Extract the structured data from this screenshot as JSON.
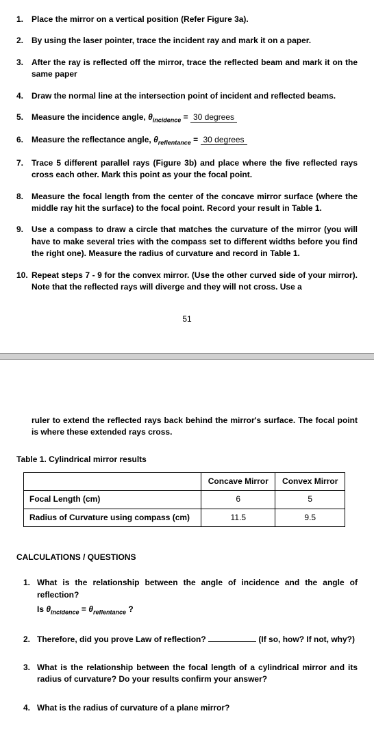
{
  "procedure": {
    "steps": [
      {
        "num": "1.",
        "text": "Place the mirror on a vertical position (Refer Figure 3a)."
      },
      {
        "num": "2.",
        "text": "By using the laser pointer, trace the incident ray and mark it on a paper."
      },
      {
        "num": "3.",
        "text": "After the ray is reflected off the mirror, trace the reflected beam and mark it on the same paper"
      },
      {
        "num": "4.",
        "text": "Draw the normal line at the intersection point of incident and reflected beams."
      },
      {
        "num": "5.",
        "prefix": "Measure the incidence angle, ",
        "theta": "θ",
        "sub": "incidence",
        "equals": " = ",
        "value": "30 degrees"
      },
      {
        "num": "6.",
        "prefix": "Measure the reflectance angle, ",
        "theta": "θ",
        "sub": "reflentance",
        "equals": " = ",
        "value": "30 degrees"
      },
      {
        "num": "7.",
        "text": "Trace 5 different parallel rays (Figure 3b) and place where the five reflected rays cross each other. Mark this point as your the focal point."
      },
      {
        "num": "8.",
        "text": "Measure the focal length from the center of the concave mirror surface (where the middle ray hit the surface) to the focal point. Record your result in Table 1."
      },
      {
        "num": "9.",
        "text": "Use a compass to draw a circle that matches the curvature of the mirror (you will have to make several tries with the compass set to different widths before you find the right one). Measure the radius of curvature and record in Table 1."
      },
      {
        "num": "10.",
        "text": "Repeat steps 7 - 9 for the convex mirror. (Use the other curved side of your mirror). Note that the reflected rays will diverge and they will not cross. Use a"
      }
    ],
    "page_number": "51",
    "continuation": "ruler to extend the reflected rays back behind the mirror's surface. The focal point is where these extended rays cross."
  },
  "table": {
    "caption": "Table 1. Cylindrical mirror results",
    "headers": [
      "",
      "Concave Mirror",
      "Convex Mirror"
    ],
    "rows": [
      {
        "label": "Focal Length (cm)",
        "concave": "6",
        "convex": "5"
      },
      {
        "label": "Radius of Curvature using compass (cm)",
        "concave": "11.5",
        "convex": "9.5"
      }
    ]
  },
  "questions": {
    "heading": "CALCULATIONS / QUESTIONS",
    "items": [
      {
        "num": "1.",
        "line1": "What is the relationship between the angle of incidence and the angle of reflection?",
        "formula_prefix": "Is ",
        "theta1": "θ",
        "sub1": "incidence",
        "eq": " = ",
        "theta2": "θ",
        "sub2": "reflentance",
        "q": " ?"
      },
      {
        "num": "2.",
        "prefix": "Therefore, did you prove Law of reflection? ",
        "suffix": " (If so, how? If not, why?)"
      },
      {
        "num": "3.",
        "text": "What is the relationship between the focal length of a cylindrical mirror and its radius of curvature? Do your results confirm your answer?"
      },
      {
        "num": "4.",
        "text": "What is the radius of curvature of a plane mirror?"
      }
    ]
  }
}
